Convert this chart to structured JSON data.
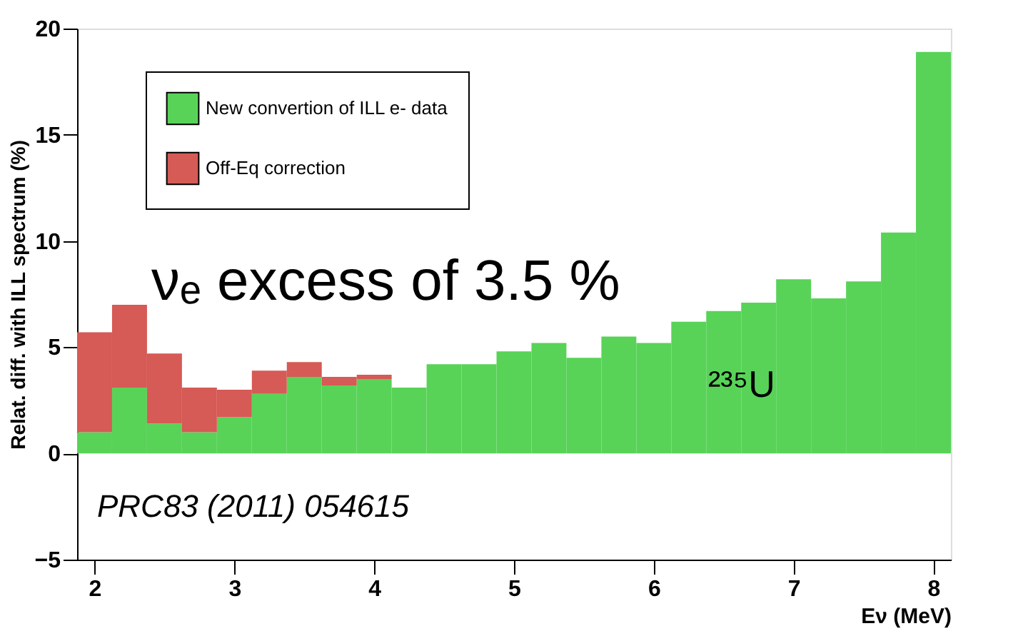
{
  "chart_data": {
    "type": "bar",
    "stacked": true,
    "xlabel": "Eν (MeV)",
    "ylabel": "Relat. diff. with ILL spectrum (%)",
    "x": [
      2,
      2.25,
      2.5,
      2.75,
      3,
      3.25,
      3.5,
      3.75,
      4,
      4.25,
      4.5,
      4.75,
      5,
      5.25,
      5.5,
      5.75,
      6,
      6.25,
      6.5,
      6.75,
      7,
      7.25,
      7.5,
      7.75,
      8
    ],
    "series": [
      {
        "name": "New convertion of ILL e- data",
        "color": "#58d358",
        "values": [
          1.0,
          3.1,
          1.4,
          1.0,
          1.7,
          2.8,
          3.6,
          3.2,
          3.5,
          3.1,
          4.2,
          4.2,
          4.8,
          5.2,
          4.5,
          5.5,
          5.2,
          6.2,
          6.7,
          7.1,
          8.2,
          7.3,
          8.1,
          10.4,
          18.9
        ]
      },
      {
        "name": "Off-Eq correction",
        "color": "#d65a55",
        "values": [
          4.7,
          3.9,
          3.3,
          2.1,
          1.3,
          1.1,
          0.7,
          0.4,
          0.2,
          null,
          null,
          null,
          null,
          null,
          null,
          null,
          null,
          null,
          null,
          null,
          null,
          null,
          null,
          null,
          null
        ]
      }
    ],
    "xlim": [
      1.875,
      8.125
    ],
    "xticks": [
      2,
      3,
      4,
      5,
      6,
      7,
      8
    ],
    "ylim": [
      -5,
      20
    ],
    "yticks": [
      -5,
      0,
      5,
      10,
      15,
      20
    ],
    "grid": false,
    "legend": "top left",
    "annotations": [
      "νₑ excess of 3.5 %",
      "²³⁵U",
      "PRC83 (2011)  054615"
    ]
  }
}
